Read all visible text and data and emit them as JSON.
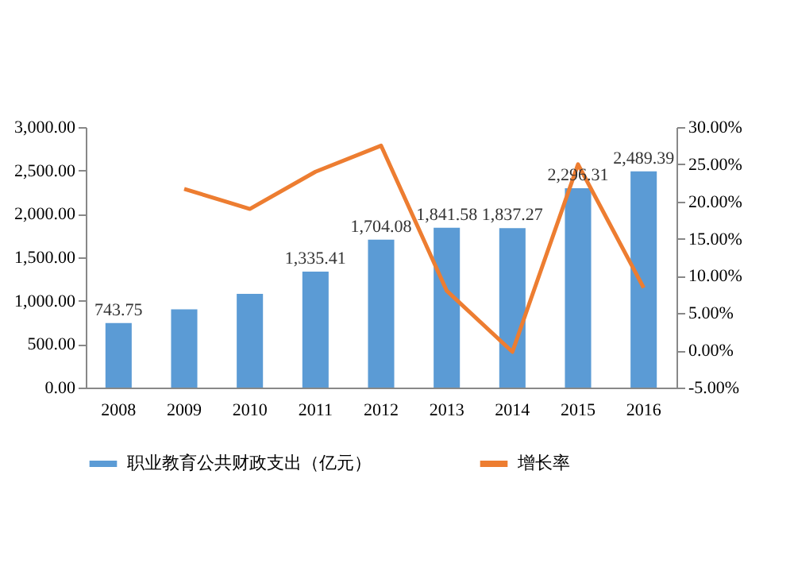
{
  "chart_data": {
    "type": "bar",
    "categories": [
      "2008",
      "2009",
      "2010",
      "2011",
      "2012",
      "2013",
      "2014",
      "2015",
      "2016"
    ],
    "series": [
      {
        "name": "职业教育公共财政支出（亿元）",
        "color": "#5b9bd5",
        "values": [
          743.75,
          900,
          1080,
          1335.41,
          1704.08,
          1841.58,
          1837.27,
          2296.31,
          2489.39
        ],
        "value_labels": [
          "743.75",
          null,
          null,
          "1,335.41",
          "1,704.08",
          "1,841.58",
          "1,837.27",
          "2,296.31",
          "2,489.39"
        ]
      },
      {
        "name": "增长率",
        "type": "line",
        "axis": "y2",
        "color": "#ed7d31",
        "values": [
          null,
          21.7,
          19,
          24,
          27.5,
          8,
          -0.2,
          25,
          8.4
        ]
      }
    ],
    "ylim": [
      0,
      3000
    ],
    "yticks": [
      {
        "value": 0,
        "label": "0.00"
      },
      {
        "value": 500,
        "label": "500.00"
      },
      {
        "value": 1000,
        "label": "1,000.00"
      },
      {
        "value": 1500,
        "label": "1,500.00"
      },
      {
        "value": 2000,
        "label": "2,000.00"
      },
      {
        "value": 2500,
        "label": "2,500.00"
      },
      {
        "value": 3000,
        "label": "3,000.00"
      }
    ],
    "y2lim": [
      -5,
      30
    ],
    "y2ticks": [
      {
        "value": -5,
        "label": "-5.00%"
      },
      {
        "value": 0,
        "label": "0.00%"
      },
      {
        "value": 5,
        "label": "5.00%"
      },
      {
        "value": 10,
        "label": "10.00%"
      },
      {
        "value": 15,
        "label": "15.00%"
      },
      {
        "value": 20,
        "label": "20.00%"
      },
      {
        "value": 25,
        "label": "25.00%"
      },
      {
        "value": 30,
        "label": "30.00%"
      }
    ],
    "grid": false,
    "legend": "bottom"
  }
}
